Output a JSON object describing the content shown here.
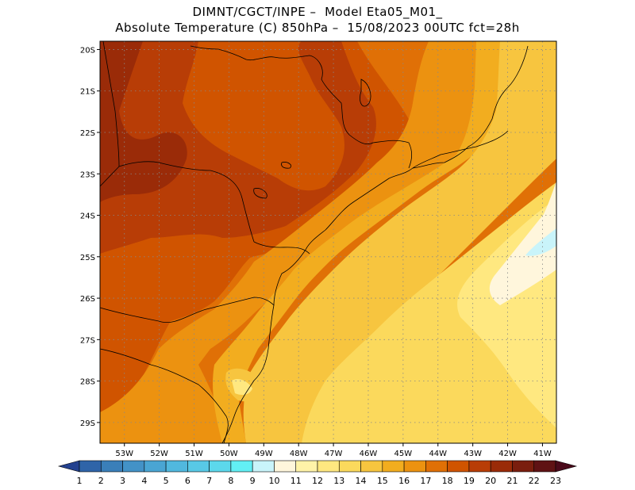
{
  "header": {
    "line1": "DIMNT/CGCT/INPE –  Model Eta05_M01_",
    "line2": "Absolute Temperature (C) 850hPa –  15/08/2023 00UTC fct=28h"
  },
  "map": {
    "lon_range": [
      -53.7,
      -40.6
    ],
    "lat_range": [
      -29.5,
      -19.8
    ],
    "lat_ticks": [
      {
        "value": -20,
        "label": "20S"
      },
      {
        "value": -21,
        "label": "21S"
      },
      {
        "value": -22,
        "label": "22S"
      },
      {
        "value": -23,
        "label": "23S"
      },
      {
        "value": -24,
        "label": "24S"
      },
      {
        "value": -25,
        "label": "25S"
      },
      {
        "value": -26,
        "label": "26S"
      },
      {
        "value": -27,
        "label": "27S"
      },
      {
        "value": -28,
        "label": "28S"
      },
      {
        "value": -29,
        "label": "29S"
      }
    ],
    "lon_ticks": [
      {
        "value": -53,
        "label": "53W"
      },
      {
        "value": -52,
        "label": "52W"
      },
      {
        "value": -51,
        "label": "51W"
      },
      {
        "value": -50,
        "label": "50W"
      },
      {
        "value": -49,
        "label": "49W"
      },
      {
        "value": -48,
        "label": "48W"
      },
      {
        "value": -47,
        "label": "47W"
      },
      {
        "value": -46,
        "label": "46W"
      },
      {
        "value": -45,
        "label": "45W"
      },
      {
        "value": -44,
        "label": "44W"
      },
      {
        "value": -43,
        "label": "43W"
      },
      {
        "value": -42,
        "label": "42W"
      },
      {
        "value": -41,
        "label": "41W"
      }
    ],
    "grid": "dotted"
  },
  "colorbar": {
    "labels": [
      "1",
      "2",
      "3",
      "4",
      "5",
      "6",
      "7",
      "8",
      "9",
      "10",
      "11",
      "12",
      "13",
      "14",
      "15",
      "16",
      "17",
      "18",
      "19",
      "20",
      "21",
      "22",
      "23"
    ],
    "colors": [
      "#23418f",
      "#2f64a8",
      "#3a7fb9",
      "#4392c7",
      "#4aa5d3",
      "#51b8de",
      "#58c9e6",
      "#5cd8ec",
      "#62eff4",
      "#c9f4fa",
      "#fff6dc",
      "#fff3a8",
      "#ffe880",
      "#fbd95c",
      "#f7c53f",
      "#f2ad1f",
      "#ec9210",
      "#e07006",
      "#d05400",
      "#b83d06",
      "#9a2b08",
      "#7a1e0e",
      "#5f1214",
      "#4a0a1a"
    ]
  },
  "colors": {
    "t13": "#ffe880",
    "t14": "#fbd95c",
    "t15": "#f7c53f",
    "t16": "#f2ad1f",
    "t17": "#ec9210",
    "t18": "#e07006",
    "t19": "#d05400",
    "t20": "#b83d06",
    "t21": "#9a2b08",
    "t11": "#fff6dc",
    "t10": "#c9f4fa"
  }
}
